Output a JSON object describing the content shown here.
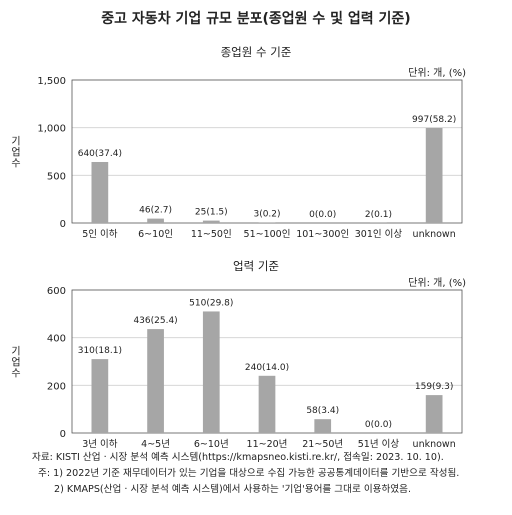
{
  "title": "중고 자동차 기업 규모 분포(종업원 수 및 업력 기준)",
  "chart_data": [
    {
      "type": "bar",
      "title": "종업원 수 기준",
      "unit": "단위: 개, (%)",
      "ylabel": "기업 수",
      "ylim": [
        0,
        1500
      ],
      "yticks": [
        "0",
        "500",
        "1,000",
        "1,500"
      ],
      "ytick_values": [
        0,
        500,
        1000,
        1500
      ],
      "categories": [
        "5인 이하",
        "6~10인",
        "11~50인",
        "51~100인",
        "101~300인",
        "301인 이상",
        "unknown"
      ],
      "values": [
        640,
        46,
        25,
        3,
        0,
        2,
        997
      ],
      "labels": [
        "640(37.4)",
        "46(2.7)",
        "25(1.5)",
        "3(0.2)",
        "0(0.0)",
        "2(0.1)",
        "997(58.2)"
      ],
      "grid": true,
      "bar_color": "#a6a6a6"
    },
    {
      "type": "bar",
      "title": "업력 기준",
      "unit": "단위: 개, (%)",
      "ylabel": "기업 수",
      "ylim": [
        0,
        600
      ],
      "yticks": [
        "0",
        "200",
        "400",
        "600"
      ],
      "ytick_values": [
        0,
        200,
        400,
        600
      ],
      "categories": [
        "3년 이하",
        "4~5년",
        "6~10년",
        "11~20년",
        "21~50년",
        "51년 이상",
        "unknown"
      ],
      "values": [
        310,
        436,
        510,
        240,
        58,
        0,
        159
      ],
      "labels": [
        "310(18.1)",
        "436(25.4)",
        "510(29.8)",
        "240(14.0)",
        "58(3.4)",
        "0(0.0)",
        "159(9.3)"
      ],
      "grid": true,
      "bar_color": "#a6a6a6"
    }
  ],
  "notes": {
    "source": "자료: KISTI 산업 · 시장 분석 예측 시스템(https://kmapsneo.kisti.re.kr/, 접속일: 2023. 10. 10).",
    "note1": "주: 1) 2022년 기준 재무데이터가 있는 기업을 대상으로 수집 가능한 공공통계데이터를 기반으로 작성됨.",
    "note2": "2) KMAPS(산업 · 시장 분석 예측 시스템)에서 사용하는 '기업'용어를 그대로 이용하였음."
  }
}
